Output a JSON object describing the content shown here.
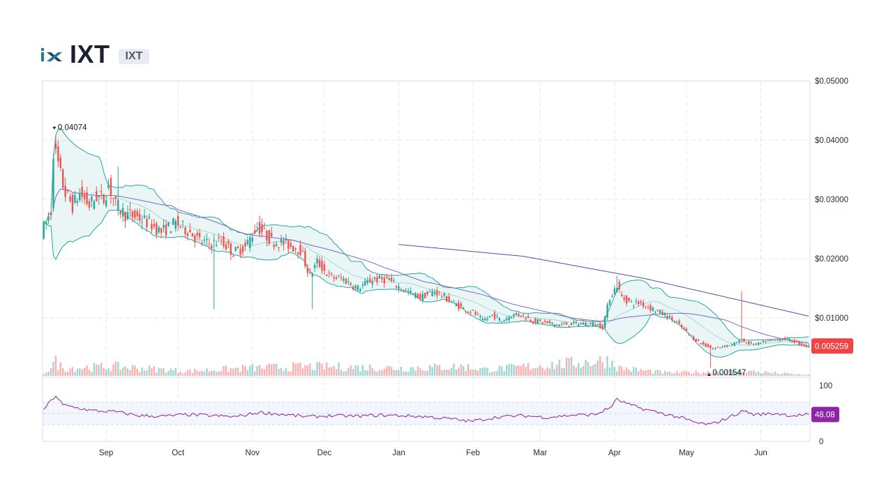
{
  "header": {
    "title": "IXT",
    "ticker": "IXT",
    "logo_icon": "ix-logo-icon",
    "logo_colors": [
      "#1e7a9c",
      "#2c3e50"
    ]
  },
  "chart_data": {
    "type": "candlestick",
    "indicators": [
      "bollinger-bands",
      "moving-average",
      "volume",
      "rsi"
    ],
    "colors": {
      "up": "#26a69a",
      "down": "#ef5350",
      "bollinger": "#26a69a",
      "bollinger_fill": "#e0f2f1",
      "ma_short": "#7b68c8",
      "ma_long": "#4a4fa8",
      "rsi": "#8b1e9e",
      "price_tag": "#ef4444",
      "rsi_tag": "#8e24aa",
      "grid": "#e3e7ee"
    },
    "price_axis": {
      "ylim": [
        0,
        0.05
      ],
      "tick_values": [
        0.01,
        0.02,
        0.03,
        0.04,
        0.05
      ],
      "tick_labels": [
        "$0.01000",
        "$0.02000",
        "$0.03000",
        "$0.04000",
        "$0.05000"
      ]
    },
    "x_axis": {
      "tick_labels": [
        "Sep",
        "Oct",
        "Nov",
        "Dec",
        "Jan",
        "Feb",
        "Mar",
        "Apr",
        "May",
        "Jun"
      ],
      "tick_day_index": [
        26,
        56,
        87,
        117,
        148,
        179,
        207,
        238,
        268,
        299
      ],
      "total_days": 320
    },
    "price_anchors": [
      [
        0,
        0.0245
      ],
      [
        2,
        0.026
      ],
      [
        4,
        0.028
      ],
      [
        5,
        0.038
      ],
      [
        6,
        0.0375
      ],
      [
        8,
        0.034
      ],
      [
        10,
        0.031
      ],
      [
        13,
        0.029
      ],
      [
        16,
        0.031
      ],
      [
        20,
        0.029
      ],
      [
        23,
        0.0305
      ],
      [
        26,
        0.03
      ],
      [
        28,
        0.0325
      ],
      [
        31,
        0.029
      ],
      [
        35,
        0.0275
      ],
      [
        40,
        0.027
      ],
      [
        45,
        0.026
      ],
      [
        50,
        0.0245
      ],
      [
        56,
        0.026
      ],
      [
        62,
        0.0245
      ],
      [
        66,
        0.023
      ],
      [
        70,
        0.0225
      ],
      [
        75,
        0.023
      ],
      [
        80,
        0.021
      ],
      [
        85,
        0.022
      ],
      [
        90,
        0.0255
      ],
      [
        96,
        0.023
      ],
      [
        102,
        0.0225
      ],
      [
        108,
        0.0215
      ],
      [
        112,
        0.017
      ],
      [
        115,
        0.0195
      ],
      [
        120,
        0.017
      ],
      [
        126,
        0.0165
      ],
      [
        132,
        0.015
      ],
      [
        138,
        0.0165
      ],
      [
        144,
        0.0165
      ],
      [
        148,
        0.0155
      ],
      [
        152,
        0.0145
      ],
      [
        158,
        0.0135
      ],
      [
        164,
        0.0145
      ],
      [
        168,
        0.0135
      ],
      [
        172,
        0.0125
      ],
      [
        176,
        0.0115
      ],
      [
        180,
        0.011
      ],
      [
        184,
        0.0095
      ],
      [
        188,
        0.0105
      ],
      [
        192,
        0.0095
      ],
      [
        196,
        0.0105
      ],
      [
        200,
        0.0105
      ],
      [
        205,
        0.0095
      ],
      [
        210,
        0.0092
      ],
      [
        215,
        0.0088
      ],
      [
        220,
        0.009
      ],
      [
        225,
        0.009
      ],
      [
        230,
        0.009
      ],
      [
        234,
        0.0085
      ],
      [
        237,
        0.0135
      ],
      [
        240,
        0.0155
      ],
      [
        242,
        0.0135
      ],
      [
        246,
        0.0125
      ],
      [
        250,
        0.0125
      ],
      [
        255,
        0.0115
      ],
      [
        260,
        0.0105
      ],
      [
        264,
        0.0095
      ],
      [
        268,
        0.008
      ],
      [
        272,
        0.0065
      ],
      [
        276,
        0.0055
      ],
      [
        280,
        0.0048
      ],
      [
        284,
        0.0052
      ],
      [
        288,
        0.0055
      ],
      [
        292,
        0.0062
      ],
      [
        294,
        0.0058
      ],
      [
        298,
        0.0055
      ],
      [
        302,
        0.006
      ],
      [
        306,
        0.0062
      ],
      [
        310,
        0.0065
      ],
      [
        314,
        0.006
      ],
      [
        317,
        0.0055
      ],
      [
        319,
        0.005259
      ]
    ],
    "spikes": [
      {
        "day": 5,
        "high": 0.04074
      },
      {
        "day": 31,
        "high": 0.0355
      },
      {
        "day": 71,
        "high": 0.0115,
        "direction": "down"
      },
      {
        "day": 112,
        "high": 0.0115,
        "direction": "down"
      },
      {
        "day": 239,
        "high": 0.0171
      },
      {
        "day": 291,
        "high": 0.0145
      },
      {
        "day": 278,
        "high": 0.0016,
        "direction": "down"
      }
    ],
    "volume_anchors": [
      [
        0,
        0.15
      ],
      [
        5,
        0.9
      ],
      [
        8,
        0.5
      ],
      [
        30,
        0.6
      ],
      [
        60,
        0.3
      ],
      [
        85,
        0.5
      ],
      [
        110,
        0.6
      ],
      [
        150,
        0.5
      ],
      [
        175,
        0.6
      ],
      [
        185,
        0.4
      ],
      [
        236,
        1.0
      ],
      [
        240,
        0.5
      ],
      [
        260,
        0.2
      ],
      [
        292,
        0.3
      ],
      [
        319,
        0.05
      ]
    ],
    "rsi_anchors": [
      [
        0,
        58
      ],
      [
        5,
        82
      ],
      [
        8,
        65
      ],
      [
        20,
        55
      ],
      [
        30,
        53
      ],
      [
        40,
        46
      ],
      [
        50,
        45
      ],
      [
        60,
        48
      ],
      [
        70,
        46
      ],
      [
        80,
        44
      ],
      [
        90,
        52
      ],
      [
        100,
        48
      ],
      [
        110,
        44
      ],
      [
        120,
        46
      ],
      [
        130,
        45
      ],
      [
        140,
        47
      ],
      [
        150,
        46
      ],
      [
        160,
        44
      ],
      [
        170,
        40
      ],
      [
        178,
        36
      ],
      [
        190,
        44
      ],
      [
        200,
        46
      ],
      [
        210,
        43
      ],
      [
        220,
        47
      ],
      [
        230,
        48
      ],
      [
        236,
        60
      ],
      [
        239,
        75
      ],
      [
        244,
        66
      ],
      [
        250,
        58
      ],
      [
        258,
        50
      ],
      [
        266,
        42
      ],
      [
        272,
        33
      ],
      [
        278,
        30
      ],
      [
        284,
        40
      ],
      [
        292,
        55
      ],
      [
        296,
        48
      ],
      [
        306,
        50
      ],
      [
        312,
        46
      ],
      [
        319,
        48.08
      ]
    ],
    "ma_long_start_day": 148,
    "ma_long_anchors": [
      [
        148,
        0.0224
      ],
      [
        200,
        0.0204
      ],
      [
        250,
        0.0167
      ],
      [
        290,
        0.013
      ],
      [
        319,
        0.0103
      ]
    ],
    "annotations": {
      "high": {
        "label": "0.04074",
        "value": 0.04074,
        "day": 5
      },
      "low": {
        "label": "0.001547",
        "value": 0.001547,
        "day": 278
      }
    },
    "last_price": {
      "value": 0.005259,
      "label": "0.005259"
    },
    "rsi_axis": {
      "tick_labels": [
        "100",
        "0"
      ],
      "levels": [
        70,
        50,
        30
      ]
    },
    "last_rsi": {
      "value": 48.08,
      "label": "48.08"
    }
  }
}
